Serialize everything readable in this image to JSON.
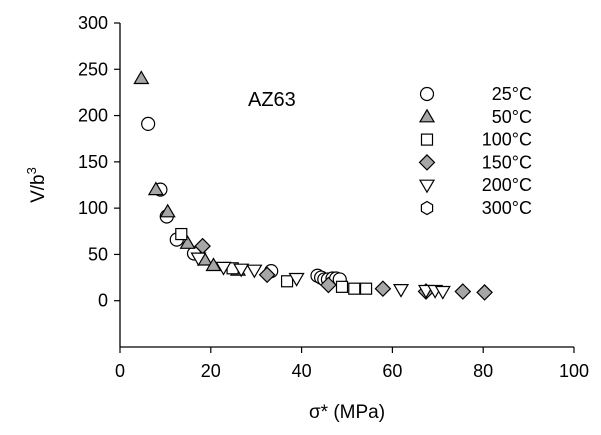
{
  "chart_data": {
    "type": "scatter",
    "annotation": "AZ63",
    "xlabel": {
      "main": "σ*",
      "unit": " (MPa)"
    },
    "ylabel": {
      "base": "V/b",
      "sup": "3"
    },
    "xlim": [
      0,
      100
    ],
    "ylim": [
      -50,
      300
    ],
    "x_ticks": [
      0,
      20,
      40,
      60,
      80,
      100
    ],
    "y_ticks": [
      0,
      50,
      100,
      150,
      200,
      250,
      300
    ],
    "grid": false,
    "legend_position": "top-right",
    "series": [
      {
        "name": "25°C",
        "marker": "circle",
        "fill": "#ffffff",
        "points": [
          [
            6.2,
            191
          ],
          [
            8.9,
            120
          ],
          [
            10.3,
            91
          ],
          [
            12.5,
            66
          ],
          [
            16.3,
            51
          ],
          [
            33.3,
            32
          ],
          [
            43.5,
            27
          ],
          [
            44.3,
            25
          ],
          [
            45.0,
            23
          ],
          [
            45.8,
            23
          ],
          [
            46.8,
            24
          ],
          [
            47.6,
            24
          ],
          [
            48.4,
            23
          ]
        ]
      },
      {
        "name": "50°C",
        "marker": "triangle-up",
        "fill": "#a6a6a6",
        "points": [
          [
            4.7,
            240
          ],
          [
            7.9,
            120
          ],
          [
            10.5,
            96
          ],
          [
            14.9,
            62
          ],
          [
            18.7,
            44
          ],
          [
            20.6,
            38
          ],
          [
            26.0,
            33
          ]
        ]
      },
      {
        "name": "100°C",
        "marker": "square",
        "fill": "#ffffff",
        "points": [
          [
            13.5,
            72
          ],
          [
            24.8,
            35
          ],
          [
            36.8,
            21
          ],
          [
            48.9,
            15
          ],
          [
            51.6,
            13
          ],
          [
            54.2,
            13
          ]
        ]
      },
      {
        "name": "150°C",
        "marker": "diamond",
        "fill": "#a6a6a6",
        "points": [
          [
            18.2,
            59
          ],
          [
            32.4,
            28
          ],
          [
            45.9,
            17
          ],
          [
            57.9,
            13
          ],
          [
            67.4,
            10
          ],
          [
            75.5,
            10
          ],
          [
            80.3,
            9
          ]
        ]
      },
      {
        "name": "200°C",
        "marker": "triangle-down",
        "fill": "#ffffff",
        "points": [
          [
            17.3,
            46
          ],
          [
            22.8,
            36
          ],
          [
            26.7,
            34
          ],
          [
            29.6,
            33
          ],
          [
            38.9,
            24
          ],
          [
            61.9,
            12
          ],
          [
            67.4,
            11
          ],
          [
            69.4,
            11
          ],
          [
            71.1,
            10
          ]
        ]
      },
      {
        "name": "300°C",
        "marker": "hexagon",
        "fill": "#ffffff",
        "points": []
      }
    ]
  }
}
